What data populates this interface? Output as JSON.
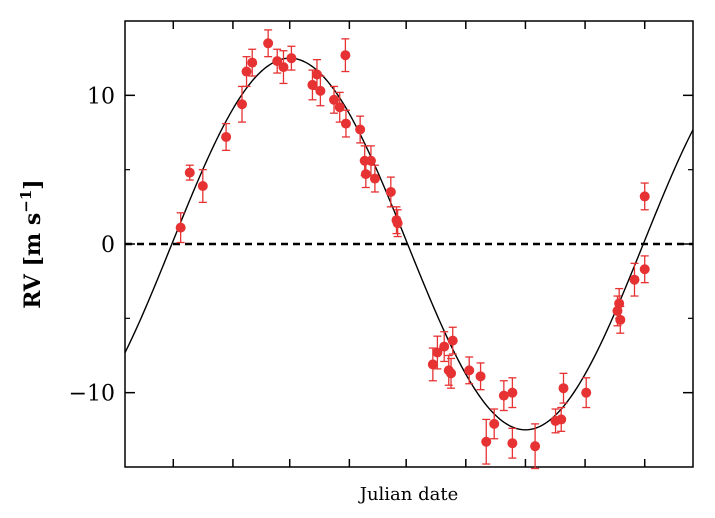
{
  "chart_data": {
    "type": "scatter",
    "title": "",
    "xlabel": "Julian date",
    "ylabel": "RV [m s",
    "ylabel_sup": "−1",
    "ylabel_end": "]",
    "xlim": [
      0,
      1
    ],
    "ylim": [
      -15,
      15
    ],
    "yticks": [
      -10,
      0,
      10
    ],
    "ytick_labels": [
      "−10",
      "0",
      "10"
    ],
    "xticks": [
      0.085,
      0.19,
      0.29,
      0.395,
      0.495,
      0.6,
      0.705,
      0.81,
      0.915
    ],
    "grid": false,
    "zero_line": {
      "y": 0,
      "style": "dashed",
      "color": "#000000"
    },
    "model_curve": {
      "amplitude": 12.5,
      "peak_x": 0.29,
      "period": 0.83,
      "offset": 0,
      "color": "#000000"
    },
    "marker_color": "#e63232",
    "series": [
      {
        "points": [
          {
            "x": 0.098,
            "y": 1.1,
            "err": 1.0
          },
          {
            "x": 0.114,
            "y": 4.8,
            "err": 0.5
          },
          {
            "x": 0.137,
            "y": 3.9,
            "err": 1.1
          },
          {
            "x": 0.178,
            "y": 7.2,
            "err": 0.9
          },
          {
            "x": 0.206,
            "y": 9.4,
            "err": 1.2
          },
          {
            "x": 0.214,
            "y": 11.6,
            "err": 1.0
          },
          {
            "x": 0.224,
            "y": 12.2,
            "err": 0.9
          },
          {
            "x": 0.252,
            "y": 13.5,
            "err": 0.9
          },
          {
            "x": 0.268,
            "y": 12.3,
            "err": 0.8
          },
          {
            "x": 0.279,
            "y": 11.9,
            "err": 1.1
          },
          {
            "x": 0.293,
            "y": 12.5,
            "err": 0.8
          },
          {
            "x": 0.33,
            "y": 10.7,
            "err": 1.0
          },
          {
            "x": 0.338,
            "y": 11.4,
            "err": 1.0
          },
          {
            "x": 0.344,
            "y": 10.3,
            "err": 1.0
          },
          {
            "x": 0.368,
            "y": 9.7,
            "err": 0.9
          },
          {
            "x": 0.378,
            "y": 9.2,
            "err": 1.0
          },
          {
            "x": 0.388,
            "y": 12.7,
            "err": 1.1
          },
          {
            "x": 0.389,
            "y": 8.1,
            "err": 0.9
          },
          {
            "x": 0.414,
            "y": 7.7,
            "err": 0.9
          },
          {
            "x": 0.422,
            "y": 5.6,
            "err": 1.0
          },
          {
            "x": 0.424,
            "y": 4.7,
            "err": 0.9
          },
          {
            "x": 0.433,
            "y": 5.6,
            "err": 1.0
          },
          {
            "x": 0.44,
            "y": 4.4,
            "err": 0.9
          },
          {
            "x": 0.468,
            "y": 3.5,
            "err": 1.0
          },
          {
            "x": 0.478,
            "y": 1.6,
            "err": 0.9
          },
          {
            "x": 0.48,
            "y": 1.4,
            "err": 0.9
          },
          {
            "x": 0.542,
            "y": -8.1,
            "err": 1.1
          },
          {
            "x": 0.55,
            "y": -7.3,
            "err": 1.1
          },
          {
            "x": 0.562,
            "y": -6.9,
            "err": 1.0
          },
          {
            "x": 0.57,
            "y": -8.5,
            "err": 1.0
          },
          {
            "x": 0.574,
            "y": -8.7,
            "err": 1.0
          },
          {
            "x": 0.577,
            "y": -6.5,
            "err": 0.9
          },
          {
            "x": 0.606,
            "y": -8.5,
            "err": 0.9
          },
          {
            "x": 0.626,
            "y": -8.9,
            "err": 0.9
          },
          {
            "x": 0.636,
            "y": -13.3,
            "err": 1.5
          },
          {
            "x": 0.65,
            "y": -12.1,
            "err": 1.0
          },
          {
            "x": 0.667,
            "y": -10.2,
            "err": 1.0
          },
          {
            "x": 0.682,
            "y": -10.0,
            "err": 1.0
          },
          {
            "x": 0.682,
            "y": -13.4,
            "err": 1.0
          },
          {
            "x": 0.722,
            "y": -13.6,
            "err": 1.5
          },
          {
            "x": 0.758,
            "y": -11.9,
            "err": 0.8
          },
          {
            "x": 0.768,
            "y": -11.8,
            "err": 0.8
          },
          {
            "x": 0.772,
            "y": -9.7,
            "err": 1.0
          },
          {
            "x": 0.812,
            "y": -10.0,
            "err": 1.0
          },
          {
            "x": 0.867,
            "y": -4.5,
            "err": 1.0
          },
          {
            "x": 0.87,
            "y": -4.0,
            "err": 1.0
          },
          {
            "x": 0.872,
            "y": -5.1,
            "err": 0.9
          },
          {
            "x": 0.897,
            "y": -2.4,
            "err": 1.1
          },
          {
            "x": 0.915,
            "y": -1.7,
            "err": 0.9
          },
          {
            "x": 0.915,
            "y": 3.2,
            "err": 0.9
          }
        ]
      }
    ]
  }
}
